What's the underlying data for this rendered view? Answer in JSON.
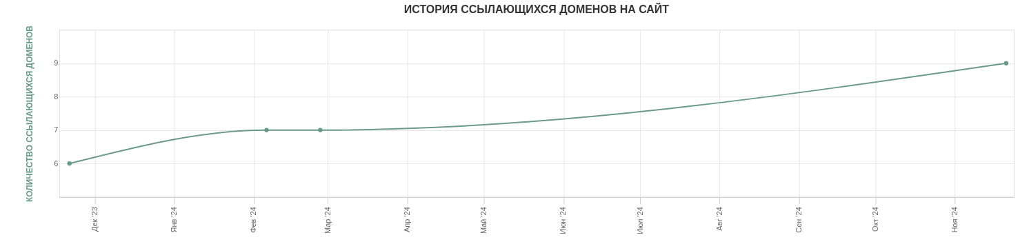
{
  "chart_data": {
    "type": "line",
    "title": "ИСТОРИЯ ССЫЛАЮЩИХСЯ ДОМЕНОВ НА САЙТ",
    "ylabel": "КОЛИЧЕСТВО ССЫЛАЮЩИХСЯ ДОМЕНОВ",
    "x": [
      "2023-11-21",
      "2024-02-06",
      "2024-02-27",
      "2024-11-21"
    ],
    "series": [
      {
        "color": "#6a9a8a",
        "values": [
          6,
          7,
          7,
          9
        ]
      }
    ],
    "xlim": [
      "2023-11-17",
      "2024-11-24"
    ],
    "xticks": [
      {
        "value": "2023-12-01",
        "label": "Дек '23"
      },
      {
        "value": "2024-01-01",
        "label": "Янв '24"
      },
      {
        "value": "2024-02-01",
        "label": "Фев '24"
      },
      {
        "value": "2024-03-01",
        "label": "Мар '24"
      },
      {
        "value": "2024-04-01",
        "label": "Апр '24"
      },
      {
        "value": "2024-05-01",
        "label": "Май '24"
      },
      {
        "value": "2024-06-01",
        "label": "Июн '24"
      },
      {
        "value": "2024-07-01",
        "label": "Июл '24"
      },
      {
        "value": "2024-08-01",
        "label": "Авг '24"
      },
      {
        "value": "2024-09-01",
        "label": "Сен '24"
      },
      {
        "value": "2024-10-01",
        "label": "Окт '24"
      },
      {
        "value": "2024-11-01",
        "label": "Ноя '24"
      }
    ],
    "ylim": [
      5,
      10
    ],
    "yticks": [
      6,
      7,
      8,
      9
    ],
    "grid": true,
    "marker": "circle",
    "line_style": "solid"
  }
}
